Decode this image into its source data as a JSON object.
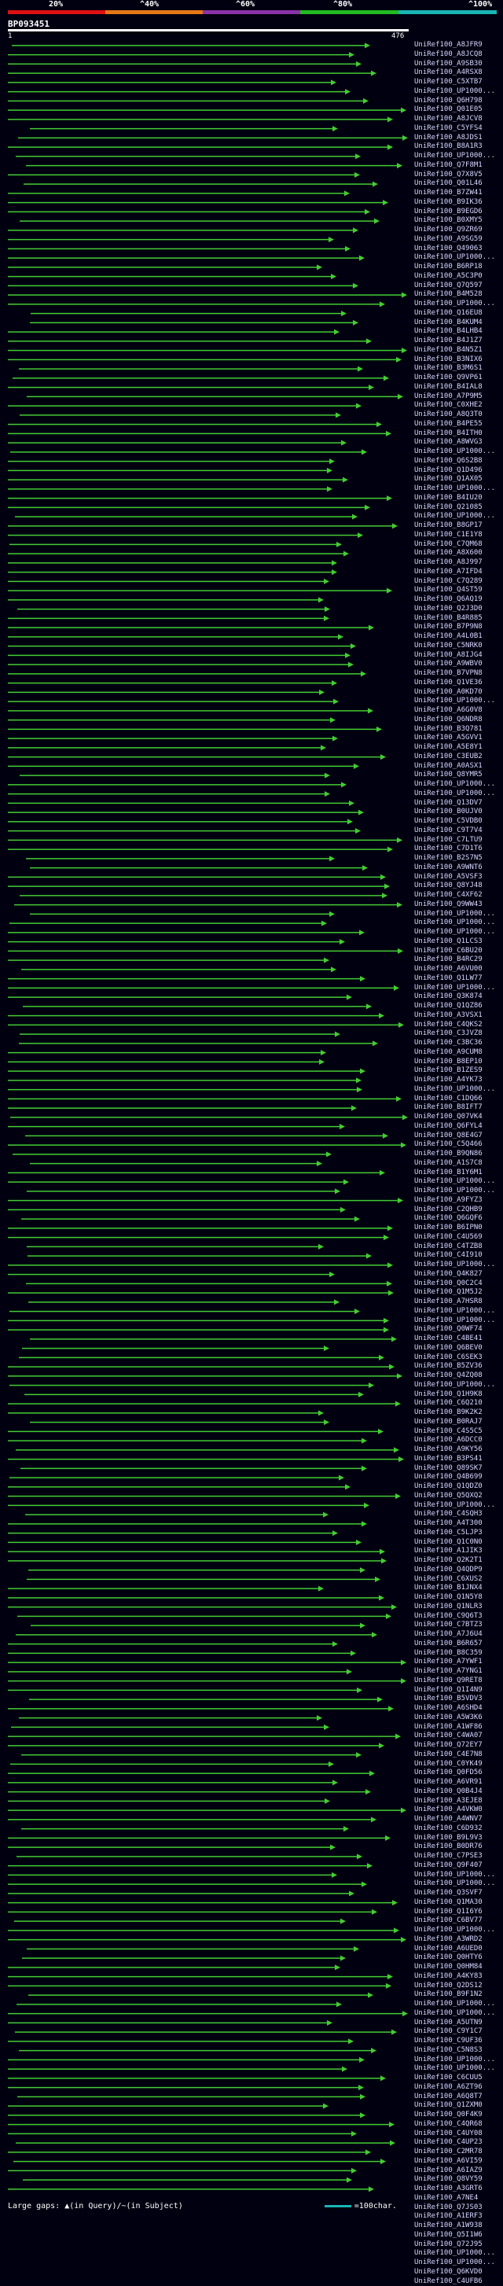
{
  "query": {
    "id": "BP093451",
    "length_start": "1",
    "length_end": "476"
  },
  "identity_legend": {
    "labels": [
      "20%",
      "^40%",
      "^60%",
      "^80%",
      "^100%"
    ],
    "colors": [
      "#dd1111",
      "#e67817",
      "#8a33aa",
      "#22bb22",
      "#19b5b5"
    ]
  },
  "colors": {
    "hit_line": "#44cc33",
    "background": "#000010",
    "gap": "#111111"
  },
  "footer": {
    "text": "Large gaps: ▲(in Query)/~(in Subject)",
    "scale_label": "=100char."
  },
  "hits": [
    "UniRef100_A8JFR9",
    "UniRef100_A8JCQ8",
    "UniRef100_A9SB30",
    "UniRef100_A4RSX8",
    "UniRef100_C5XTB7",
    "UniRef100_UP1000...",
    "UniRef100_Q6H798",
    "UniRef100_Q01E05",
    "UniRef100_A8JCV8",
    "UniRef100_C5YFS4",
    "UniRef100_A8JDS1",
    "UniRef100_B8A1R3",
    "UniRef100_UP1000...",
    "UniRef100_Q7F8M1",
    "UniRef100_Q7X8V5",
    "UniRef100_Q01L46",
    "UniRef100_B7ZW41",
    "UniRef100_B9IK36",
    "UniRef100_B9EGD6",
    "UniRef100_B0XMY5",
    "UniRef100_Q9ZR69",
    "UniRef100_A9SG59",
    "UniRef100_Q49063",
    "UniRef100_UP1000...",
    "UniRef100_B6RP18",
    "UniRef100_A5C3P0",
    "UniRef100_Q7Q597",
    "UniRef100_B4M528",
    "UniRef100_UP1000...",
    "UniRef100_Q16EU8",
    "UniRef100_B4KUM4",
    "UniRef100_B4LHB4",
    "UniRef100_B4J1Z7",
    "UniRef100_B4N5Z1",
    "UniRef100_B3NIX6",
    "UniRef100_B3M6S1",
    "UniRef100_Q9VP61",
    "UniRef100_B4IAL8",
    "UniRef100_A7P9M5",
    "UniRef100_C0XHE2",
    "UniRef100_A8Q3T0",
    "UniRef100_B4PE55",
    "UniRef100_B4ITH0",
    "UniRef100_A8WVG3",
    "UniRef100_UP1000...",
    "UniRef100_Q6S2B8",
    "UniRef100_Q1D496",
    "UniRef100_Q1AX05",
    "UniRef100_UP1000...",
    "UniRef100_B4IU20",
    "UniRef100_Q21085",
    "UniRef100_UP1000...",
    "UniRef100_B8GP17",
    "UniRef100_C1E1Y8",
    "UniRef100_C7QM68",
    "UniRef100_A8X600",
    "UniRef100_A8J997",
    "UniRef100_A7IFD4",
    "UniRef100_C7Q289",
    "UniRef100_Q4ST59",
    "UniRef100_Q6AQ19",
    "UniRef100_Q2J3D0",
    "UniRef100_B4R885",
    "UniRef100_B7P9N8",
    "UniRef100_A4L0B1",
    "UniRef100_C5NRK0",
    "UniRef100_A8IJG4",
    "UniRef100_A9WBV0",
    "UniRef100_B7VPN8",
    "UniRef100_Q1VE36",
    "UniRef100_A0KD70",
    "UniRef100_UP1000...",
    "UniRef100_A6G0V8",
    "UniRef100_Q6NDR8",
    "UniRef100_B3Q781",
    "UniRef100_A5GVV1",
    "UniRef100_A5E8Y1",
    "UniRef100_C3EUB2",
    "UniRef100_A0ASX1",
    "UniRef100_Q8YMR5",
    "UniRef100_UP1000...",
    "UniRef100_UP1000...",
    "UniRef100_Q13DV7",
    "UniRef100_B0UJV0",
    "UniRef100_C5VDB0",
    "UniRef100_C9T7V4",
    "UniRef100_C7LTU9",
    "UniRef100_C7D1T6",
    "UniRef100_B2S7N5",
    "UniRef100_A9WNT6",
    "UniRef100_A5VSF3",
    "UniRef100_Q8YJ48",
    "UniRef100_C4XF62",
    "UniRef100_Q9WW43",
    "UniRef100_UP1000...",
    "UniRef100_UP1000...",
    "UniRef100_UP1000...",
    "UniRef100_Q1LCS3",
    "UniRef100_C6BU20",
    "UniRef100_B4RC29",
    "UniRef100_A6VU00",
    "UniRef100_Q1LW77",
    "UniRef100_UP1000...",
    "UniRef100_Q3K874",
    "UniRef100_Q1QZ86",
    "UniRef100_A3VSX1",
    "UniRef100_C4QKS2",
    "UniRef100_C3JVZ8",
    "UniRef100_C3BC36",
    "UniRef100_A9CUM8",
    "UniRef100_B8EP10",
    "UniRef100_B1ZES9",
    "UniRef100_A4YK73",
    "UniRef100_UP1000...",
    "UniRef100_C1DQ66",
    "UniRef100_B8IFT7",
    "UniRef100_Q07VK4",
    "UniRef100_Q6FYL4",
    "UniRef100_Q8E4G7",
    "UniRef100_C5Q466",
    "UniRef100_B9QN86",
    "UniRef100_A1S7C8",
    "UniRef100_B1Y6M1",
    "UniRef100_UP1000...",
    "UniRef100_UP1000...",
    "UniRef100_A9FYZ3",
    "UniRef100_C2QHB9",
    "UniRef100_Q6GQF6",
    "UniRef100_B6IPN0",
    "UniRef100_C4U569",
    "UniRef100_C4TZB8",
    "UniRef100_C4I910",
    "UniRef100_UP1000...",
    "UniRef100_Q4K827",
    "UniRef100_Q0C2C4",
    "UniRef100_Q1M5J2",
    "UniRef100_A7HSR8",
    "UniRef100_UP1000...",
    "UniRef100_UP1000...",
    "UniRef100_Q0WF74",
    "UniRef100_C4BE41",
    "UniRef100_Q6BEV0",
    "UniRef100_C6SEK3",
    "UniRef100_B5ZV36",
    "UniRef100_Q4ZQ08",
    "UniRef100_UP1000...",
    "UniRef100_Q1H9K8",
    "UniRef100_C6Q210",
    "UniRef100_B9K2K2",
    "UniRef100_B0RAJ7",
    "UniRef100_C4S5C5",
    "UniRef100_A6DCC0",
    "UniRef100_A9KY56",
    "UniRef100_B3PS41",
    "UniRef100_Q89SK7",
    "UniRef100_Q4B699",
    "UniRef100_Q1QDZ0",
    "UniRef100_Q5QXQ2",
    "UniRef100_UP1000...",
    "UniRef100_C4SQH3",
    "UniRef100_A4T300",
    "UniRef100_C5LJP3",
    "UniRef100_Q1C0N0",
    "UniRef100_A1JIK3",
    "UniRef100_Q2K2T1",
    "UniRef100_Q4QDP9",
    "UniRef100_C6XUS2",
    "UniRef100_B1JNX4",
    "UniRef100_Q1N5Y8",
    "UniRef100_Q1NLR3",
    "UniRef100_C9Q6T3",
    "UniRef100_C7BTZ3",
    "UniRef100_A7J6U4",
    "UniRef100_B6R657",
    "UniRef100_B8C359",
    "UniRef100_A7YWF1",
    "UniRef100_A7YNG1",
    "UniRef100_Q9RET8",
    "UniRef100_Q1I4N9",
    "UniRef100_B5VDV3",
    "UniRef100_A6SHD4",
    "UniRef100_A5W3K6",
    "UniRef100_A1WF86",
    "UniRef100_C4WA07",
    "UniRef100_Q72EY7",
    "UniRef100_C4E7N8",
    "UniRef100_C0YK49",
    "UniRef100_Q0FD56",
    "UniRef100_A6VR91",
    "UniRef100_Q0B4J4",
    "UniRef100_A3EJE8",
    "UniRef100_A4VKW0",
    "UniRef100_A4WNV7",
    "UniRef100_C6D932",
    "UniRef100_B9L9V3",
    "UniRef100_B0DR76",
    "UniRef100_C7PSE3",
    "UniRef100_Q9F407",
    "UniRef100_UP1000...",
    "UniRef100_UP1000...",
    "UniRef100_Q3SVF7",
    "UniRef100_Q1MA30",
    "UniRef100_Q1I6Y6",
    "UniRef100_C6BV77",
    "UniRef100_UP1000...",
    "UniRef100_A3WRD2",
    "UniRef100_A6UED0",
    "UniRef100_Q0HTY6",
    "UniRef100_Q0HM84",
    "UniRef100_A4KY83",
    "UniRef100_Q2DS12",
    "UniRef100_B9F1N2",
    "UniRef100_UP1000...",
    "UniRef100_UP1000...",
    "UniRef100_A5UTN9",
    "UniRef100_C9Y1C7",
    "UniRef100_C9UF36",
    "UniRef100_C5N8S3",
    "UniRef100_UP1000...",
    "UniRef100_UP1000...",
    "UniRef100_C6CUU5",
    "UniRef100_A6ZT96",
    "UniRef100_A6Q8T7",
    "UniRef100_Q1ZXM0",
    "UniRef100_Q0F4K9",
    "UniRef100_C4QR68",
    "UniRef100_C4UY08",
    "UniRef100_C4UP23",
    "UniRef100_C2MR78",
    "UniRef100_A6VI59",
    "UniRef100_A6IAZ9",
    "UniRef100_Q8VY59",
    "UniRef100_A3GRT6",
    "UniRef100_A7NE4",
    "UniRef100_Q7JS03",
    "UniRef100_A1ERF3",
    "UniRef100_A1W938",
    "UniRef100_Q5I1W6",
    "UniRef100_Q72J95",
    "UniRef100_UP1000...",
    "UniRef100_UP1000...",
    "UniRef100_Q6KVD0",
    "UniRef100_C4UFB6"
  ]
}
